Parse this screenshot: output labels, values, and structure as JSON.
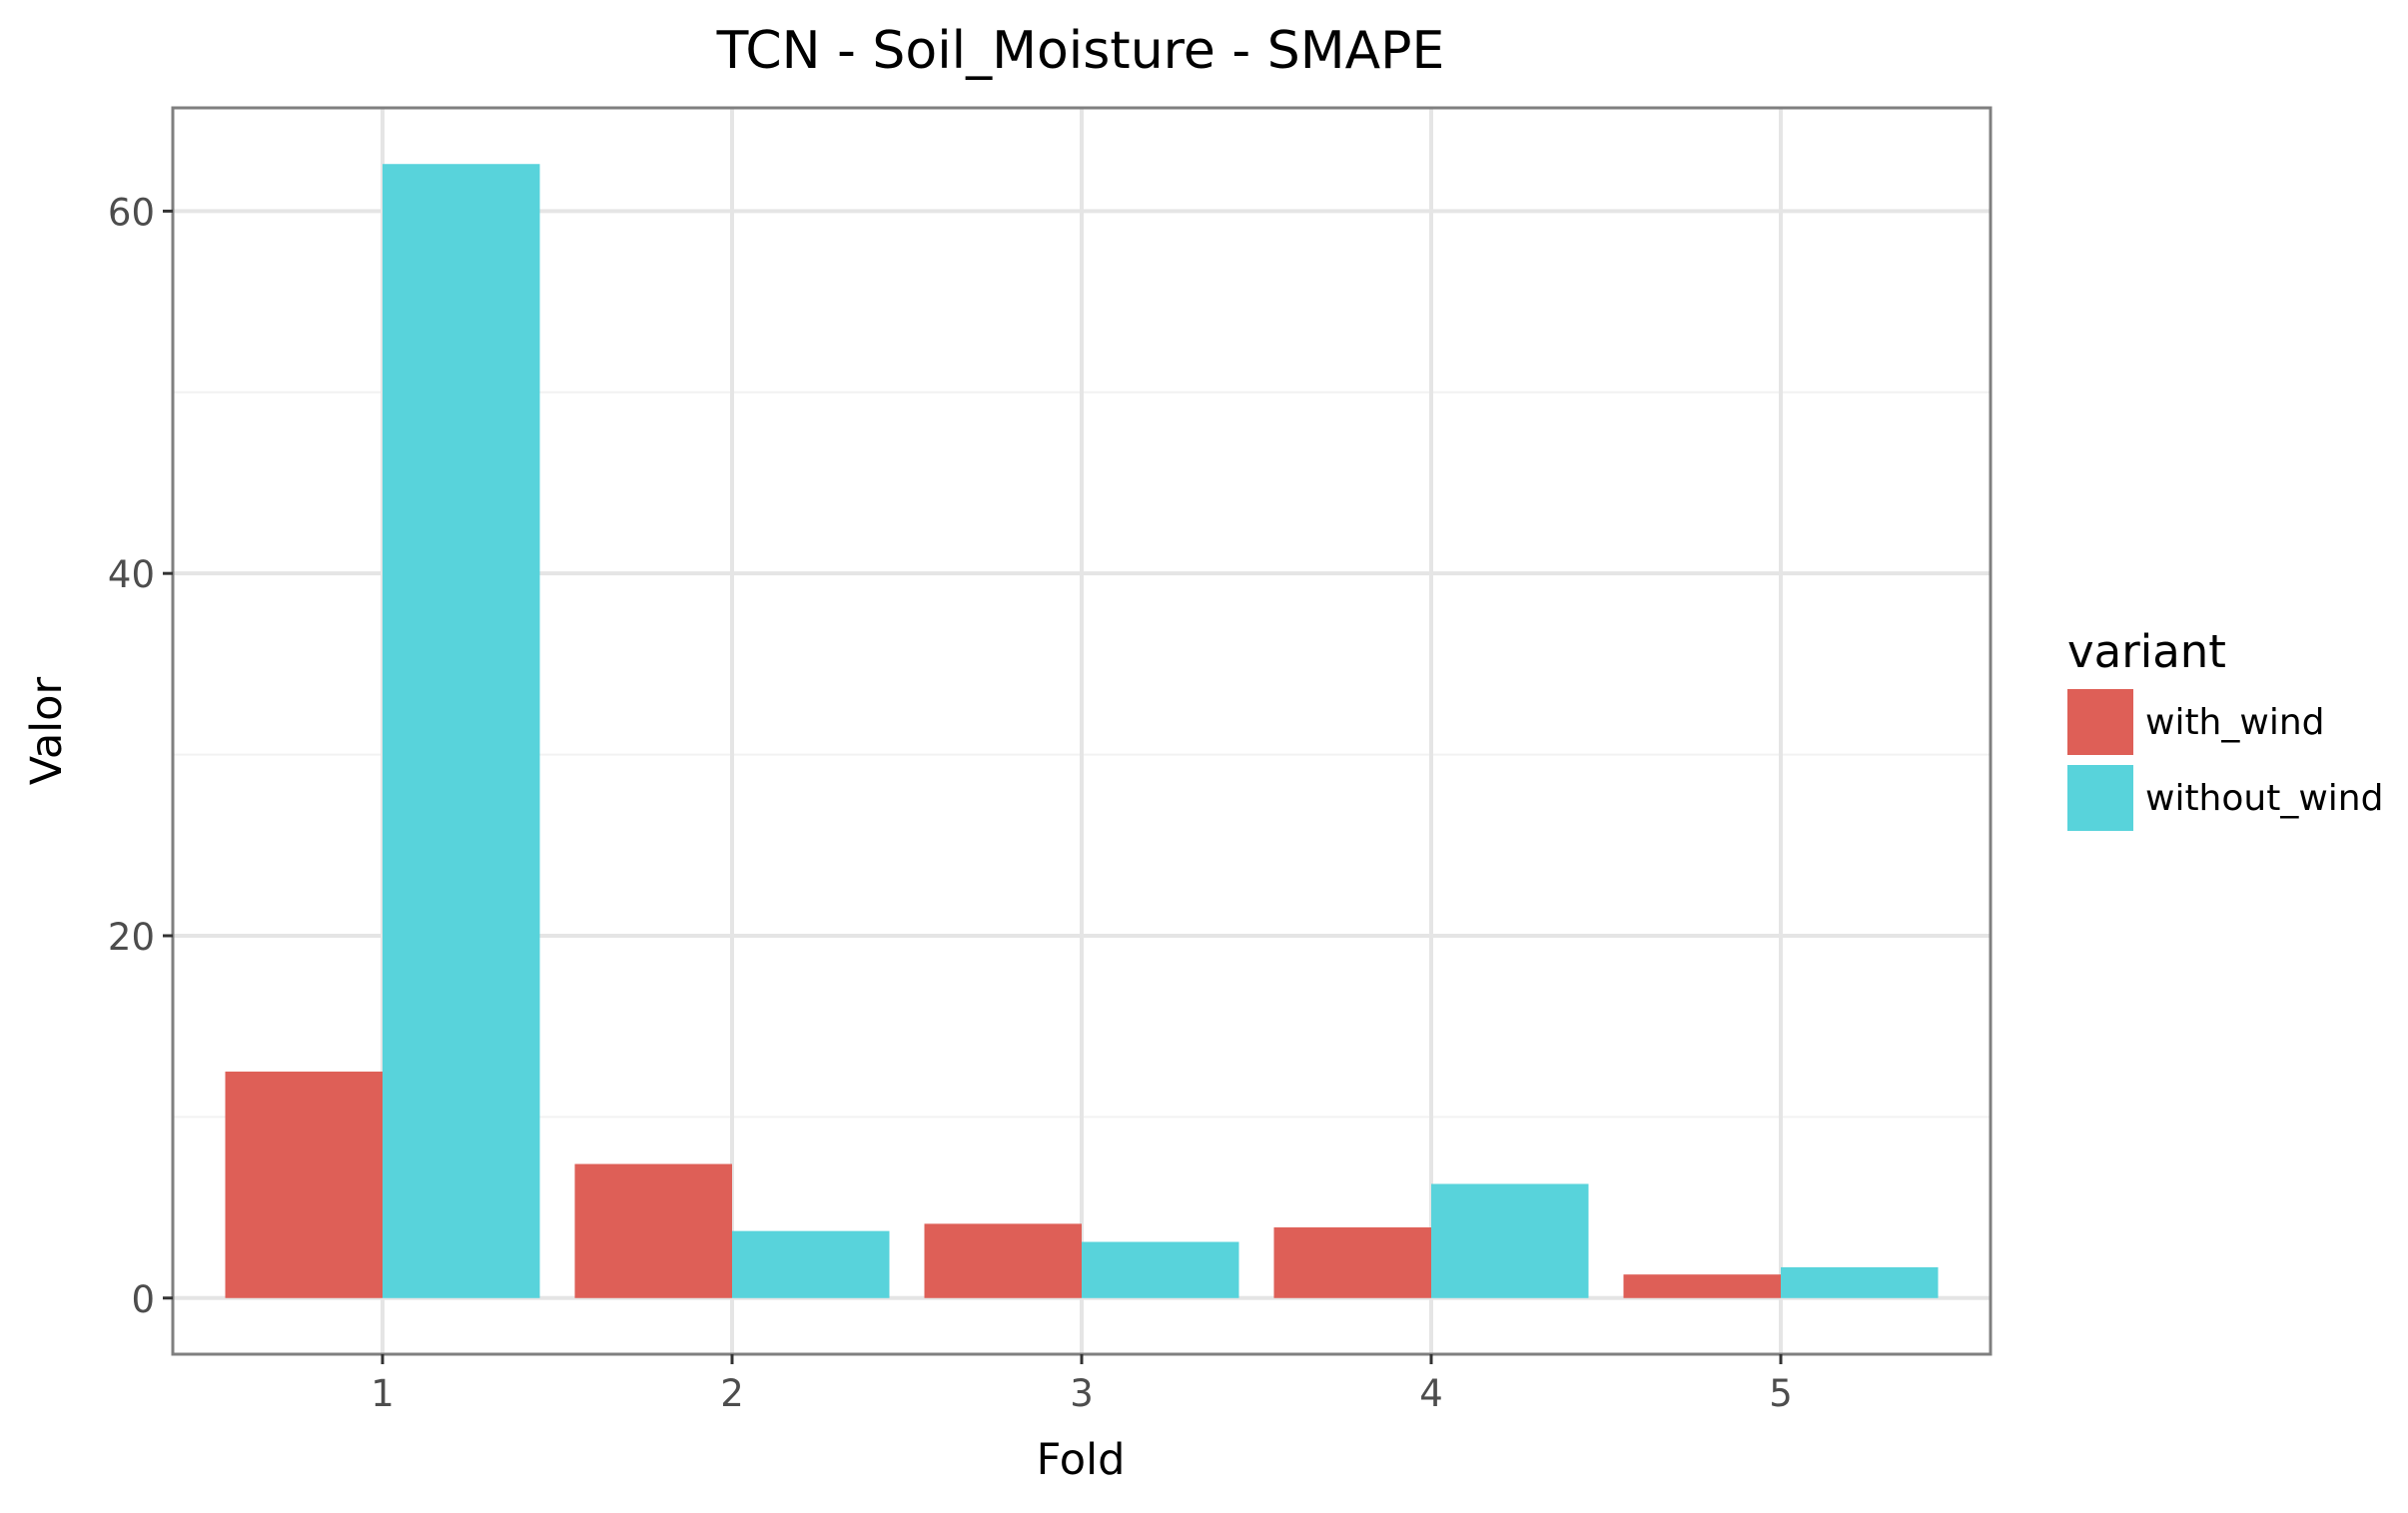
{
  "chart_data": {
    "type": "bar",
    "title": "TCN - Soil_Moisture - SMAPE",
    "xlabel": "Fold",
    "ylabel": "Valor",
    "categories": [
      "1",
      "2",
      "3",
      "4",
      "5"
    ],
    "series": [
      {
        "name": "with_wind",
        "color": "#DE5F57",
        "values": [
          12.5,
          7.4,
          4.1,
          3.9,
          1.3
        ]
      },
      {
        "name": "without_wind",
        "color": "#58D3DB",
        "values": [
          62.6,
          3.7,
          3.1,
          6.3,
          1.7
        ]
      }
    ],
    "yticks": [
      0,
      20,
      40,
      60
    ],
    "ylim": [
      -3.1,
      65.7
    ],
    "grid": true,
    "legend": {
      "title": "variant",
      "position": "right"
    }
  }
}
